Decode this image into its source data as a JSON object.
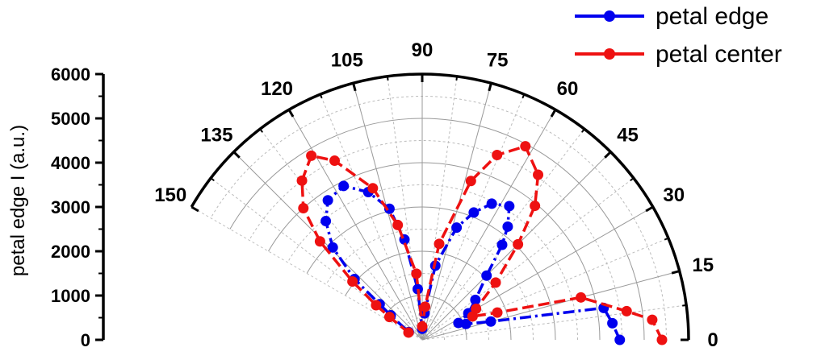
{
  "chart_data": {
    "type": "polar-line",
    "ylabel": "petal edge I (a.u.)",
    "r_range": [
      0,
      6000
    ],
    "r_ticks": [
      0,
      1000,
      2000,
      3000,
      4000,
      5000,
      6000
    ],
    "r_tick_labels": [
      "0",
      "1000",
      "2000",
      "3000",
      "4000",
      "5000",
      "6000"
    ],
    "theta_range_deg": [
      0,
      150
    ],
    "theta_ticks": [
      0,
      15,
      30,
      45,
      60,
      75,
      90,
      105,
      120,
      135,
      150
    ],
    "theta_tick_labels": [
      "0",
      "15",
      "30",
      "45",
      "60",
      "75",
      "90",
      "105",
      "120",
      "135",
      "150"
    ],
    "grid": true,
    "legend_position": "top-right",
    "series": [
      {
        "name": "petal edge",
        "color": "#0000ee",
        "marker": "circle",
        "linestyle": "dash-dot",
        "points": [
          {
            "theta": 0,
            "r": 4450
          },
          {
            "theta": 5,
            "r": 4300
          },
          {
            "theta": 10,
            "r": 4150
          },
          {
            "theta": 15,
            "r": 1600
          },
          {
            "theta": 20,
            "r": 1050
          },
          {
            "theta": 25,
            "r": 900
          },
          {
            "theta": 30,
            "r": 1200
          },
          {
            "theta": 37,
            "r": 1500
          },
          {
            "theta": 45,
            "r": 2050
          },
          {
            "theta": 50,
            "r": 2800
          },
          {
            "theta": 53,
            "r": 3200
          },
          {
            "theta": 57,
            "r": 3600
          },
          {
            "theta": 63,
            "r": 3450
          },
          {
            "theta": 68,
            "r": 3100
          },
          {
            "theta": 73,
            "r": 2650
          },
          {
            "theta": 80,
            "r": 1700
          },
          {
            "theta": 85,
            "r": 600
          },
          {
            "theta": 90,
            "r": 250
          },
          {
            "theta": 95,
            "r": 1150
          },
          {
            "theta": 100,
            "r": 2300
          },
          {
            "theta": 104,
            "r": 3050
          },
          {
            "theta": 110,
            "r": 3550
          },
          {
            "theta": 117,
            "r": 3900
          },
          {
            "theta": 124,
            "r": 3800
          },
          {
            "theta": 129,
            "r": 3450
          },
          {
            "theta": 134,
            "r": 2900
          },
          {
            "theta": 138,
            "r": 2050
          },
          {
            "theta": 140,
            "r": 1250
          },
          {
            "theta": 142,
            "r": 900
          },
          {
            "theta": 150,
            "r": 350
          }
        ]
      },
      {
        "name": "petal center",
        "color": "#ee1111",
        "marker": "circle",
        "linestyle": "dash",
        "points": [
          {
            "theta": 0,
            "r": 5400
          },
          {
            "theta": 5,
            "r": 5200
          },
          {
            "theta": 8,
            "r": 4650
          },
          {
            "theta": 15,
            "r": 3700
          },
          {
            "theta": 20,
            "r": 1800
          },
          {
            "theta": 25,
            "r": 1250
          },
          {
            "theta": 30,
            "r": 1400
          },
          {
            "theta": 38,
            "r": 2100
          },
          {
            "theta": 45,
            "r": 3050
          },
          {
            "theta": 50,
            "r": 3950
          },
          {
            "theta": 55,
            "r": 4550
          },
          {
            "theta": 62,
            "r": 4950
          },
          {
            "theta": 68,
            "r": 4500
          },
          {
            "theta": 73,
            "r": 3750
          },
          {
            "theta": 80,
            "r": 2200
          },
          {
            "theta": 85,
            "r": 750
          },
          {
            "theta": 90,
            "r": 300
          },
          {
            "theta": 95,
            "r": 1500
          },
          {
            "theta": 102,
            "r": 2650
          },
          {
            "theta": 108,
            "r": 3600
          },
          {
            "theta": 116,
            "r": 4500
          },
          {
            "theta": 121,
            "r": 4850
          },
          {
            "theta": 127,
            "r": 4500
          },
          {
            "theta": 132,
            "r": 4000
          },
          {
            "theta": 136,
            "r": 3200
          },
          {
            "theta": 140,
            "r": 2050
          },
          {
            "theta": 143,
            "r": 1300
          },
          {
            "theta": 145,
            "r": 900
          },
          {
            "theta": 152,
            "r": 350
          }
        ]
      }
    ]
  }
}
